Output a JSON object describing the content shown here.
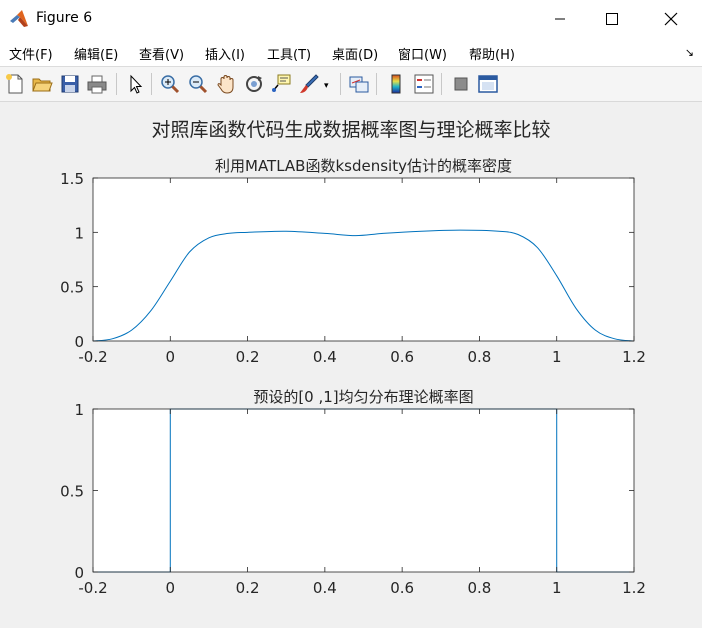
{
  "window": {
    "title": "Figure 6",
    "icons": [
      "matlab-logo-icon",
      "minimize-icon",
      "maximize-icon",
      "close-icon"
    ]
  },
  "menu": {
    "items": [
      "文件(F)",
      "编辑(E)",
      "查看(V)",
      "插入(I)",
      "工具(T)",
      "桌面(D)",
      "窗口(W)",
      "帮助(H)"
    ],
    "overflow": "↘"
  },
  "toolbar": {
    "icons": [
      "new-figure-icon",
      "open-file-icon",
      "save-icon",
      "print-icon",
      "pointer-icon",
      "zoom-in-icon",
      "zoom-out-icon",
      "pan-icon",
      "rotate-3d-icon",
      "data-cursor-icon",
      "brush-icon",
      "link-plot-icon",
      "colorbar-icon",
      "legend-icon",
      "hide-plot-tools-icon",
      "show-plot-tools-icon"
    ]
  },
  "figure": {
    "suptitle": "对照库函数代码生成数据概率图与理论概率比较",
    "line_color": "#0072bd"
  },
  "chart_data": [
    {
      "type": "line",
      "title": "利用MATLAB函数ksdensity估计的概率密度",
      "xlim": [
        -0.2,
        1.2
      ],
      "ylim": [
        0,
        1.5
      ],
      "xticks": [
        "-0.2",
        "0",
        "0.2",
        "0.4",
        "0.6",
        "0.8",
        "1",
        "1.2"
      ],
      "yticks": [
        "0",
        "0.5",
        "1",
        "1.5"
      ],
      "x": [
        -0.2,
        -0.15,
        -0.1,
        -0.05,
        0,
        0.05,
        0.1,
        0.15,
        0.2,
        0.3,
        0.4,
        0.48,
        0.55,
        0.65,
        0.75,
        0.85,
        0.9,
        0.95,
        1.0,
        1.05,
        1.1,
        1.15,
        1.2
      ],
      "y": [
        0.0,
        0.02,
        0.1,
        0.28,
        0.55,
        0.82,
        0.95,
        0.99,
        1.0,
        1.01,
        0.99,
        0.97,
        0.99,
        1.01,
        1.02,
        1.01,
        0.98,
        0.86,
        0.6,
        0.3,
        0.1,
        0.02,
        0.0
      ],
      "grid": false
    },
    {
      "type": "line",
      "title": "预设的[0 ,1]均匀分布理论概率图",
      "xlim": [
        -0.2,
        1.2
      ],
      "ylim": [
        0,
        1
      ],
      "xticks": [
        "-0.2",
        "0",
        "0.2",
        "0.4",
        "0.6",
        "0.8",
        "1",
        "1.2"
      ],
      "yticks": [
        "0",
        "0.5",
        "1"
      ],
      "x": [
        -0.2,
        0,
        0,
        1,
        1,
        1.2
      ],
      "y": [
        0,
        0,
        1,
        1,
        0,
        0
      ],
      "grid": false
    }
  ]
}
